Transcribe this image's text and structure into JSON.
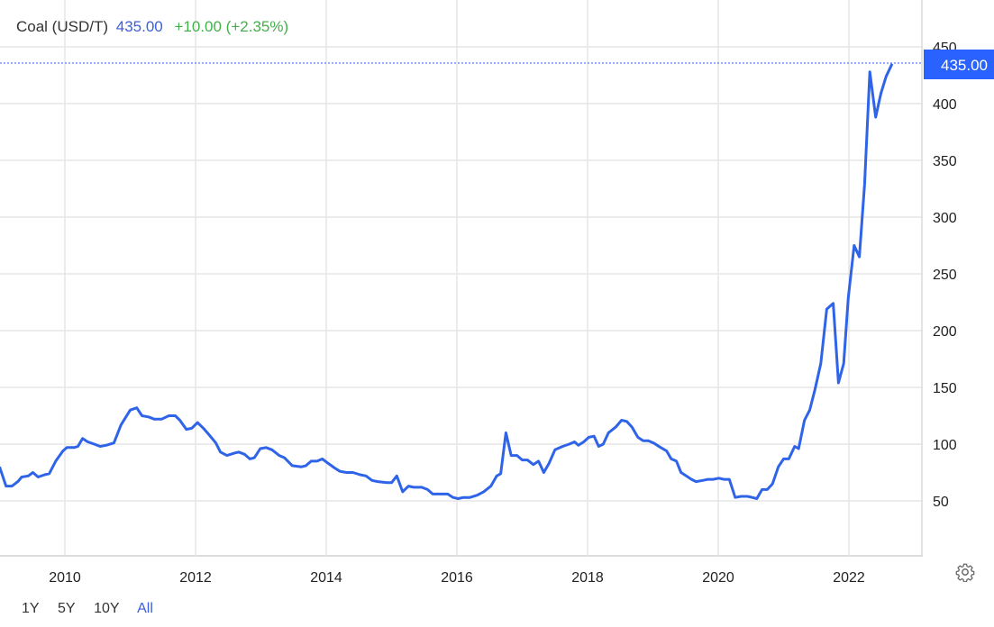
{
  "header": {
    "name": "Coal (USD/T)",
    "price": "435.00",
    "change": "+10.00 (+2.35%)"
  },
  "price_label": "435.00",
  "ranges": [
    {
      "label": "1Y",
      "active": false
    },
    {
      "label": "5Y",
      "active": false
    },
    {
      "label": "10Y",
      "active": false
    },
    {
      "label": "All",
      "active": true
    }
  ],
  "colors": {
    "line": "#2f64e8",
    "price_tag": "#2962ff",
    "header_price": "#3d5fd9",
    "change": "#43b04a",
    "grid": "#e6e6e6"
  },
  "icons": {
    "settings": "gear-icon"
  },
  "chart_data": {
    "type": "line",
    "title": "Coal (USD/T)",
    "xlabel": "",
    "ylabel": "",
    "xlim": [
      2009.0,
      2023.1
    ],
    "ylim": [
      0,
      455
    ],
    "grid": true,
    "y_axis_position": "right",
    "x_ticks": [
      "2010",
      "2012",
      "2014",
      "2016",
      "2018",
      "2020",
      "2022"
    ],
    "y_ticks": [
      "50",
      "100",
      "150",
      "200",
      "250",
      "300",
      "350",
      "400",
      "450"
    ],
    "last_value": 435.0,
    "series": [
      {
        "x": [
          2009.0,
          2009.1,
          2009.19,
          2009.28,
          2009.34,
          2009.44,
          2009.51,
          2009.59,
          2009.69,
          2009.76,
          2009.86,
          2009.97,
          2010.03,
          2010.14,
          2010.2,
          2010.27,
          2010.35,
          2010.45,
          2010.54,
          2010.63,
          2010.75,
          2010.86,
          2011.0,
          2011.1,
          2011.18,
          2011.28,
          2011.37,
          2011.48,
          2011.59,
          2011.69,
          2011.76,
          2011.86,
          2011.94,
          2012.03,
          2012.12,
          2012.21,
          2012.31,
          2012.38,
          2012.48,
          2012.59,
          2012.66,
          2012.75,
          2012.83,
          2012.9,
          2012.99,
          2013.08,
          2013.17,
          2013.28,
          2013.36,
          2013.48,
          2013.62,
          2013.69,
          2013.77,
          2013.86,
          2013.94,
          2014.03,
          2014.13,
          2014.21,
          2014.31,
          2014.41,
          2014.52,
          2014.61,
          2014.7,
          2014.79,
          2014.93,
          2015.0,
          2015.08,
          2015.17,
          2015.26,
          2015.34,
          2015.46,
          2015.55,
          2015.63,
          2015.76,
          2015.86,
          2015.94,
          2016.02,
          2016.1,
          2016.2,
          2016.31,
          2016.41,
          2016.52,
          2016.61,
          2016.67,
          2016.75,
          2016.83,
          2016.92,
          2017.0,
          2017.08,
          2017.17,
          2017.25,
          2017.33,
          2017.41,
          2017.5,
          2017.62,
          2017.72,
          2017.8,
          2017.86,
          2017.94,
          2018.02,
          2018.1,
          2018.17,
          2018.24,
          2018.32,
          2018.43,
          2018.52,
          2018.6,
          2018.68,
          2018.77,
          2018.85,
          2018.93,
          2019.01,
          2019.12,
          2019.21,
          2019.28,
          2019.36,
          2019.43,
          2019.51,
          2019.59,
          2019.66,
          2019.76,
          2019.84,
          2019.92,
          2020.01,
          2020.09,
          2020.17,
          2020.26,
          2020.35,
          2020.45,
          2020.52,
          2020.59,
          2020.67,
          2020.75,
          2020.83,
          2020.92,
          2021.0,
          2021.08,
          2021.17,
          2021.23,
          2021.32,
          2021.4,
          2021.48,
          2021.57,
          2021.66,
          2021.76,
          2021.84,
          2021.92,
          2021.99,
          2022.08,
          2022.16,
          2022.24,
          2022.32,
          2022.41,
          2022.49,
          2022.57,
          2022.66
        ],
        "y": [
          80,
          63,
          63,
          67,
          71,
          72,
          75,
          71,
          73,
          74,
          85,
          94,
          97,
          97,
          98,
          105,
          102,
          100,
          98,
          99,
          101,
          117,
          130,
          132,
          125,
          124,
          122,
          122,
          125,
          125,
          121,
          113,
          114,
          119,
          114,
          108,
          101,
          93,
          90,
          92,
          93,
          91,
          87,
          88,
          96,
          97,
          95,
          90,
          88,
          81,
          80,
          81,
          85,
          85,
          87,
          83,
          79,
          76,
          75,
          75,
          73,
          72,
          68,
          67,
          66,
          66,
          72,
          58,
          63,
          62,
          62,
          60,
          56,
          56,
          56,
          53,
          52,
          53,
          53,
          55,
          58,
          63,
          72,
          74,
          110,
          90,
          90,
          86,
          86,
          82,
          85,
          75,
          83,
          95,
          98,
          100,
          102,
          99,
          102,
          106,
          107,
          98,
          100,
          110,
          115,
          121,
          120,
          115,
          106,
          103,
          103,
          101,
          97,
          94,
          87,
          85,
          75,
          72,
          69,
          67,
          68,
          69,
          69,
          70,
          69,
          69,
          53,
          54,
          54,
          53,
          52,
          60,
          60,
          65,
          80,
          87,
          87,
          98,
          96,
          121,
          130,
          148,
          171,
          219,
          224,
          154,
          171,
          229,
          275,
          265,
          329,
          428,
          388,
          409,
          424,
          435
        ]
      }
    ]
  }
}
